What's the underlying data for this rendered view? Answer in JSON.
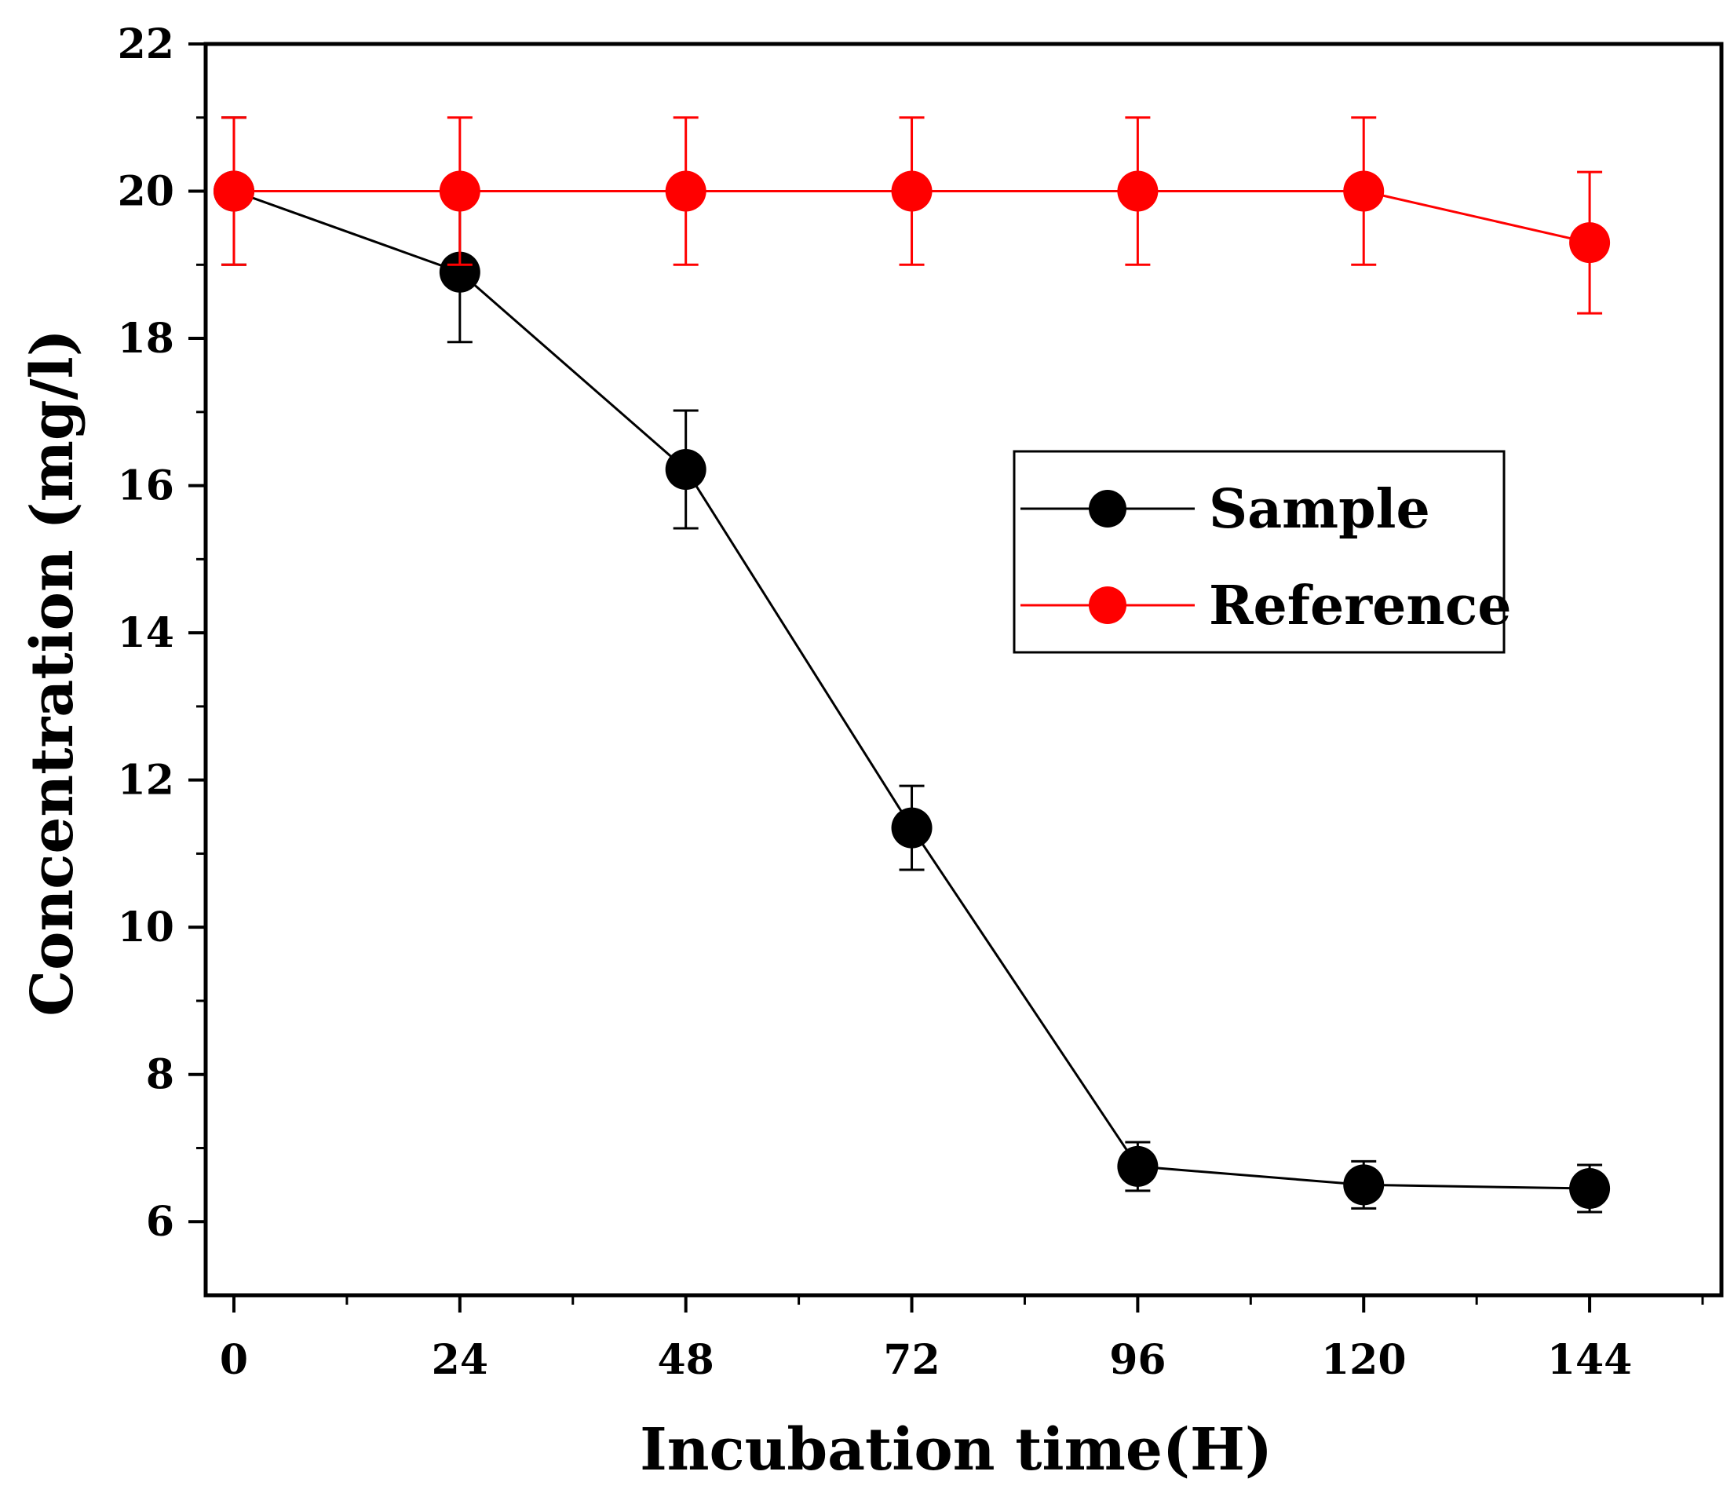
{
  "chart_data": {
    "type": "line",
    "title": "",
    "xlabel": "Incubation time(H)",
    "ylabel": "Concentration (mg/l)",
    "xlim": [
      -3,
      158
    ],
    "ylim": [
      5,
      22
    ],
    "x_ticks": [
      0,
      24,
      48,
      72,
      96,
      120,
      144
    ],
    "x_minor_ticks": [
      12,
      36,
      60,
      84,
      108,
      132,
      156
    ],
    "y_ticks": [
      6,
      8,
      10,
      12,
      14,
      16,
      18,
      20,
      22
    ],
    "y_minor_ticks": [
      7,
      9,
      11,
      13,
      15,
      17,
      19,
      21
    ],
    "grid": false,
    "legend_position": "center-right",
    "series": [
      {
        "name": "Sample",
        "color": "#000000",
        "x": [
          0,
          24,
          48,
          72,
          96,
          120,
          144
        ],
        "values": [
          20.0,
          18.9,
          16.22,
          11.35,
          6.75,
          6.5,
          6.45
        ],
        "errors": [
          1.0,
          0.95,
          0.8,
          0.57,
          0.33,
          0.32,
          0.32
        ]
      },
      {
        "name": "Reference",
        "color": "#ff0000",
        "x": [
          0,
          24,
          48,
          72,
          96,
          120,
          144
        ],
        "values": [
          20.0,
          20.0,
          20.0,
          20.0,
          20.0,
          20.0,
          19.3
        ],
        "errors": [
          1.0,
          1.0,
          1.0,
          1.0,
          1.0,
          1.0,
          0.96
        ]
      }
    ]
  }
}
